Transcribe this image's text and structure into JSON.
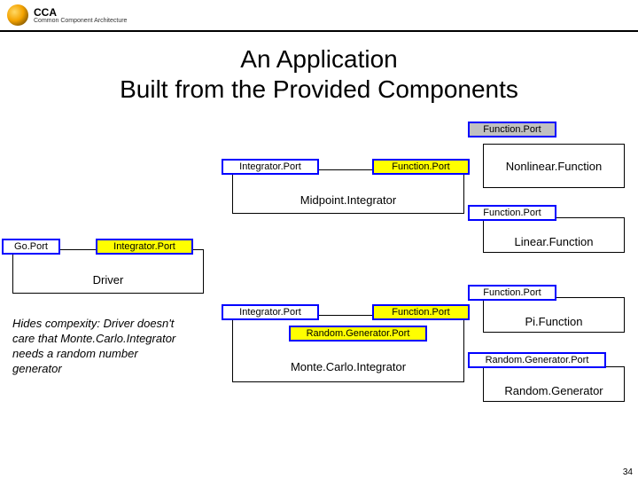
{
  "header": {
    "cca": "CCA",
    "sub": "Common Component Architecture"
  },
  "title": "An Application\nBuilt from the Provided Components",
  "components": {
    "nonlinear": {
      "label": "Nonlinear.Function",
      "port_top": "Function.Port"
    },
    "midpoint": {
      "label": "Midpoint.Integrator",
      "port_left": "Integrator.Port",
      "port_right": "Function.Port"
    },
    "linear": {
      "label": "Linear.Function",
      "port": "Function.Port"
    },
    "driver": {
      "label": "Driver",
      "port_go": "Go.Port",
      "port_int": "Integrator.Port"
    },
    "montecarlo": {
      "label": "Monte.Carlo.Integrator",
      "port_left": "Integrator.Port",
      "port_right": "Function.Port",
      "port_rand": "Random.Generator.Port"
    },
    "pi": {
      "label": "Pi.Function",
      "port": "Function.Port"
    },
    "randgen": {
      "label": "Random.Generator",
      "port": "Random.Generator.Port"
    }
  },
  "note": "Hides compexity: Driver doesn't care that Monte.Carlo.Integrator needs a random number generator",
  "pagenum": "34",
  "colors": {
    "port_border": "#0000ff",
    "uses_fill": "#ffff00",
    "provides_fill": "#ffffff",
    "inactive_fill": "#c0c0c0",
    "box_bg": "#ffffff"
  }
}
